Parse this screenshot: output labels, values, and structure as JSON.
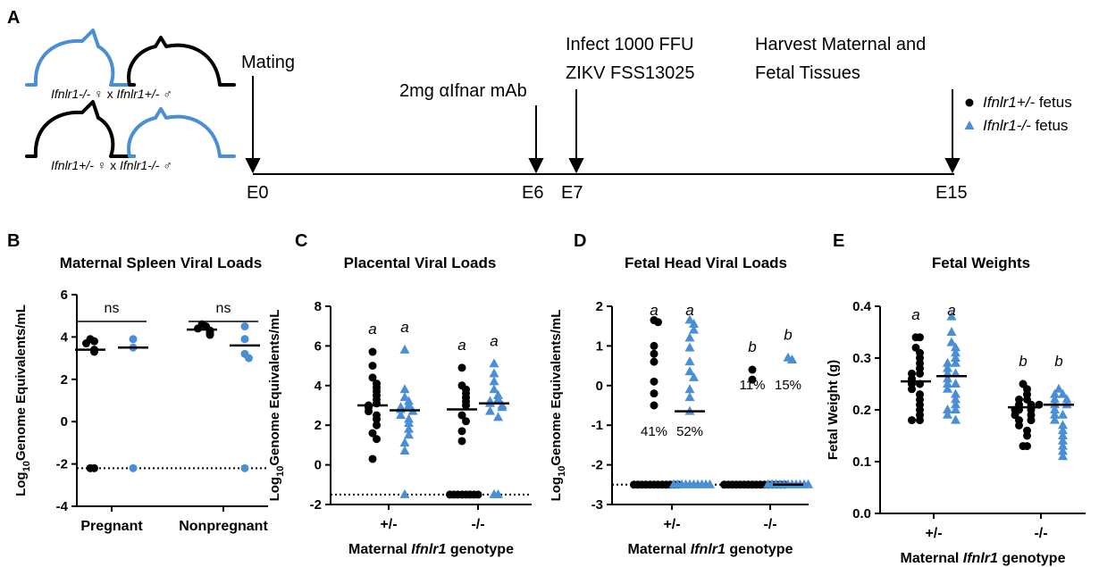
{
  "panel_labels": [
    "A",
    "B",
    "C",
    "D",
    "E"
  ],
  "timeline": {
    "events": [
      {
        "label": [
          "Mating"
        ],
        "day": "E0"
      },
      {
        "label": [
          "2mg αIfnar mAb"
        ],
        "day": "E6"
      },
      {
        "label": [
          "Infect 1000 FFU",
          "ZIKV FSS13025"
        ],
        "day": "E7"
      },
      {
        "label": [
          "Harvest Maternal and",
          "Fetal Tissues"
        ],
        "day": "E15"
      }
    ]
  },
  "mating": [
    [
      "Ifnlr1-/-",
      " ♀ x ",
      "Ifnlr1+/-",
      " ♂"
    ],
    [
      "Ifnlr1+/-",
      " ♀ x ",
      "Ifnlr1-/-",
      " ♂"
    ]
  ],
  "legend": [
    {
      "label": [
        "Ifnlr1+/-",
        " fetus"
      ],
      "color": "#000000",
      "marker": "circle"
    },
    {
      "label": [
        "Ifnlr1-/-",
        " fetus"
      ],
      "color": "#4a8fd6",
      "marker": "triangle"
    }
  ],
  "chart_data": [
    {
      "type": "dotplot",
      "title": "Maternal Spleen Viral Loads",
      "ylabel": [
        "Log",
        "10",
        "Genome Equivalents/mL"
      ],
      "categories": [
        "Pregnant",
        "Nonpregnant"
      ],
      "ylim": [
        -4,
        6
      ],
      "yticks": [
        -4,
        -2,
        0,
        2,
        4,
        6
      ],
      "lod": -2.2,
      "comparisons": [
        "ns",
        "ns"
      ],
      "series": [
        {
          "color": "#000000",
          "marker": "circle",
          "values": [
            [
              3.9,
              3.8,
              3.7,
              3.4,
              3.3,
              -2.2,
              -2.2
            ],
            [
              4.6,
              4.5,
              4.4,
              4.3,
              4.2,
              4.1
            ]
          ],
          "means": [
            3.4,
            4.35
          ]
        },
        {
          "color": "#4a8fd6",
          "marker": "circle",
          "values": [
            [
              3.9,
              3.5,
              -2.2
            ],
            [
              4.5,
              3.9,
              3.2,
              3.0,
              -2.2
            ]
          ],
          "means": [
            3.5,
            3.6
          ]
        }
      ]
    },
    {
      "type": "dotplot",
      "title": "Placental Viral Loads",
      "ylabel": [
        "Log",
        "10",
        "Genome Equivalents/mL"
      ],
      "xlabel": [
        "Maternal ",
        "Ifnlr1",
        " genotype"
      ],
      "categories": [
        "+/-",
        "-/-"
      ],
      "ylim": [
        -2,
        8
      ],
      "yticks": [
        -2,
        0,
        2,
        4,
        6,
        8
      ],
      "lod": -1.5,
      "letters": [
        [
          "a",
          "a"
        ],
        [
          "a",
          "a"
        ]
      ],
      "series": [
        {
          "color": "#000000",
          "marker": "circle",
          "values": [
            [
              5.7,
              5.0,
              4.4,
              4.1,
              3.9,
              3.7,
              3.5,
              3.3,
              3.1,
              3.0,
              2.9,
              2.7,
              2.5,
              2.3,
              2.0,
              1.6,
              1.3,
              0.3
            ],
            [
              4.9,
              4.0,
              3.8,
              3.6,
              3.4,
              3.2,
              3.0,
              2.5,
              2.2,
              1.7,
              1.2,
              -1.5,
              -1.5,
              -1.5,
              -1.5,
              -1.5,
              -1.5,
              -1.5,
              -1.5
            ]
          ],
          "means": [
            3.0,
            2.8
          ]
        },
        {
          "color": "#4a8fd6",
          "marker": "triangle",
          "values": [
            [
              5.8,
              3.8,
              3.4,
              3.2,
              3.0,
              2.9,
              2.8,
              2.7,
              2.5,
              2.3,
              2.1,
              1.8,
              1.5,
              1.1,
              0.7,
              -1.5
            ],
            [
              5.1,
              4.6,
              4.2,
              3.8,
              3.5,
              3.3,
              3.2,
              3.1,
              3.0,
              2.9,
              2.7,
              2.4,
              -1.5,
              -1.5
            ]
          ],
          "means": [
            2.75,
            3.1
          ]
        }
      ]
    },
    {
      "type": "dotplot",
      "title": "Fetal Head Viral Loads",
      "ylabel": [
        "Log",
        "10",
        "Genome Equivalents/mL"
      ],
      "xlabel": [
        "Maternal ",
        "Ifnlr1",
        " genotype"
      ],
      "categories": [
        "+/-",
        "-/-"
      ],
      "ylim": [
        -3,
        2
      ],
      "yticks": [
        -3,
        -2,
        -1,
        0,
        1,
        2
      ],
      "lod": -2.5,
      "letters": [
        [
          "a",
          "a"
        ],
        [
          "b",
          "b"
        ]
      ],
      "detect_labels": [
        [
          "41%",
          "52%"
        ],
        [
          "11%",
          "15%"
        ]
      ],
      "series": [
        {
          "color": "#000000",
          "marker": "circle",
          "values": [
            [
              1.65,
              1.6,
              1.0,
              0.8,
              0.6,
              0.1,
              -0.2,
              -0.5,
              -2.5,
              -2.5,
              -2.5,
              -2.5,
              -2.5,
              -2.5,
              -2.5,
              -2.5,
              -2.5,
              -2.5,
              -2.5,
              -2.5
            ],
            [
              0.4,
              0.15,
              -2.5,
              -2.5,
              -2.5,
              -2.5,
              -2.5,
              -2.5,
              -2.5,
              -2.5,
              -2.5,
              -2.5,
              -2.5,
              -2.5,
              -2.5,
              -2.5,
              -2.5,
              -2.5
            ]
          ],
          "means": [
            -2.5,
            -2.5
          ]
        },
        {
          "color": "#4a8fd6",
          "marker": "triangle",
          "values": [
            [
              1.65,
              1.55,
              1.4,
              1.2,
              0.95,
              0.6,
              0.35,
              0.2,
              -0.1,
              -0.3,
              -0.65,
              -2.5,
              -2.5,
              -2.5,
              -2.5,
              -2.5,
              -2.5,
              -2.5,
              -2.5,
              -2.5,
              -2.5
            ],
            [
              0.7,
              0.65,
              -2.5,
              -2.5,
              -2.5,
              -2.5,
              -2.5,
              -2.5,
              -2.5,
              -2.5,
              -2.5,
              -2.5,
              -2.5
            ]
          ],
          "means": [
            -0.65,
            -2.5
          ]
        }
      ]
    },
    {
      "type": "dotplot",
      "title": "Fetal Weights",
      "ylabel": [
        "Fetal Weight (g)"
      ],
      "xlabel": [
        "Maternal ",
        "Ifnlr1",
        " genotype"
      ],
      "categories": [
        "+/-",
        "-/-"
      ],
      "ylim": [
        0,
        0.4
      ],
      "yticks": [
        {
          "value": 0,
          "label": "0.0"
        },
        0.1,
        0.2,
        0.3,
        0.4
      ],
      "letters": [
        [
          "a",
          "a"
        ],
        [
          "b",
          "b"
        ]
      ],
      "series": [
        {
          "color": "#000000",
          "marker": "circle",
          "values": [
            [
              0.34,
              0.34,
              0.32,
              0.31,
              0.3,
              0.29,
              0.28,
              0.27,
              0.27,
              0.26,
              0.25,
              0.25,
              0.24,
              0.23,
              0.22,
              0.21,
              0.2,
              0.19,
              0.18,
              0.18
            ],
            [
              0.25,
              0.24,
              0.23,
              0.22,
              0.22,
              0.21,
              0.21,
              0.2,
              0.2,
              0.2,
              0.19,
              0.19,
              0.18,
              0.18,
              0.17,
              0.16,
              0.15,
              0.13,
              0.13,
              0.21
            ]
          ],
          "means": [
            0.255,
            0.205
          ]
        },
        {
          "color": "#4a8fd6",
          "marker": "triangle",
          "values": [
            [
              0.38,
              0.35,
              0.33,
              0.32,
              0.31,
              0.3,
              0.29,
              0.29,
              0.28,
              0.27,
              0.27,
              0.26,
              0.25,
              0.25,
              0.24,
              0.23,
              0.22,
              0.21,
              0.2,
              0.2,
              0.19,
              0.18
            ],
            [
              0.24,
              0.23,
              0.23,
              0.22,
              0.22,
              0.21,
              0.21,
              0.2,
              0.19,
              0.19,
              0.18,
              0.17,
              0.16,
              0.15,
              0.14,
              0.13,
              0.12,
              0.11
            ]
          ],
          "means": [
            0.265,
            0.21
          ]
        }
      ]
    }
  ]
}
